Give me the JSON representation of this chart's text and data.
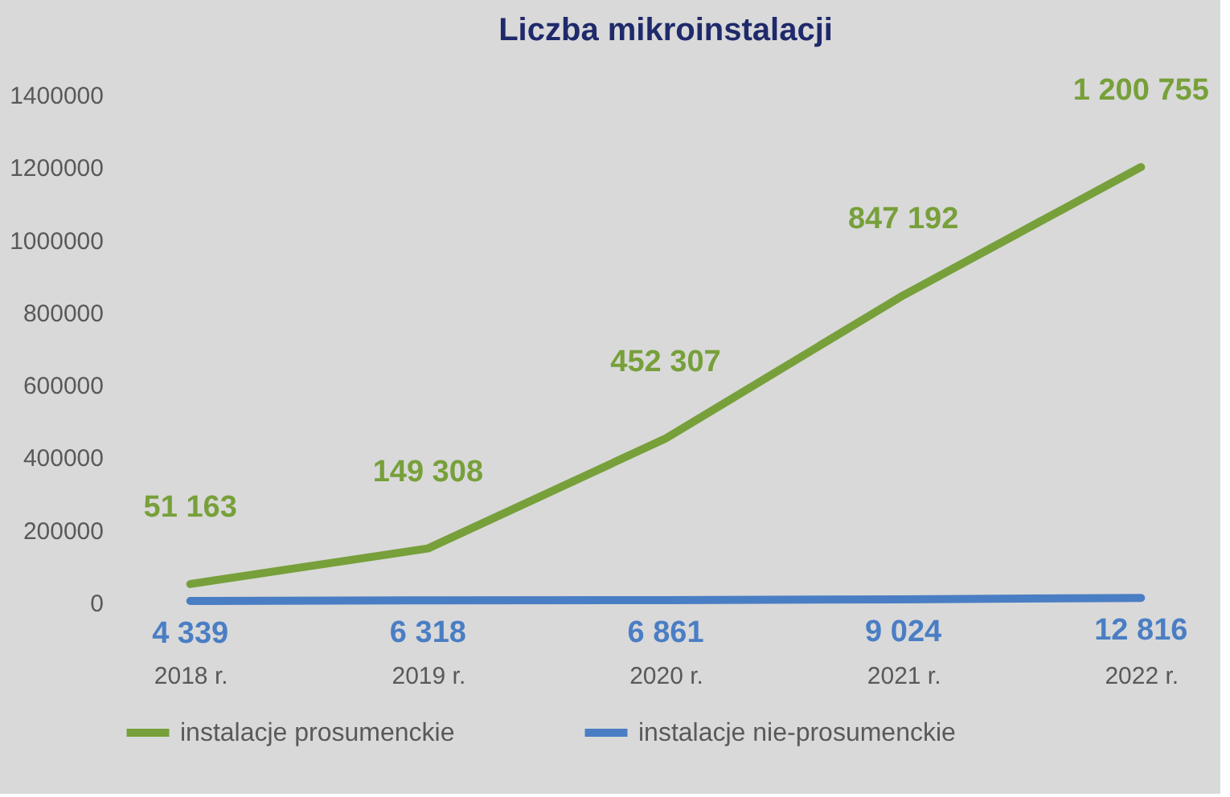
{
  "chart_data": {
    "type": "line",
    "title": "Liczba mikroinstalacji",
    "categories": [
      "2018 r.",
      "2019 r.",
      "2020 r.",
      "2021 r.",
      "2022 r."
    ],
    "series": [
      {
        "name": "instalacje prosumenckie",
        "color": "#77a03a",
        "values": [
          51163,
          149308,
          452307,
          847192,
          1200755
        ],
        "value_labels": [
          "51 163",
          "149 308",
          "452 307",
          "847 192",
          "1 200 755"
        ]
      },
      {
        "name": "instalacje nie-prosumenckie",
        "color": "#4a7ec4",
        "values": [
          4339,
          6318,
          6861,
          9024,
          12816
        ],
        "value_labels": [
          "4 339",
          "6 318",
          "6 861",
          "9 024",
          "12 816"
        ]
      }
    ],
    "ylim": [
      0,
      1400000
    ],
    "yticks": [
      0,
      200000,
      400000,
      600000,
      800000,
      1000000,
      1200000,
      1400000
    ],
    "legend": "bottom",
    "line_style": "solid"
  }
}
